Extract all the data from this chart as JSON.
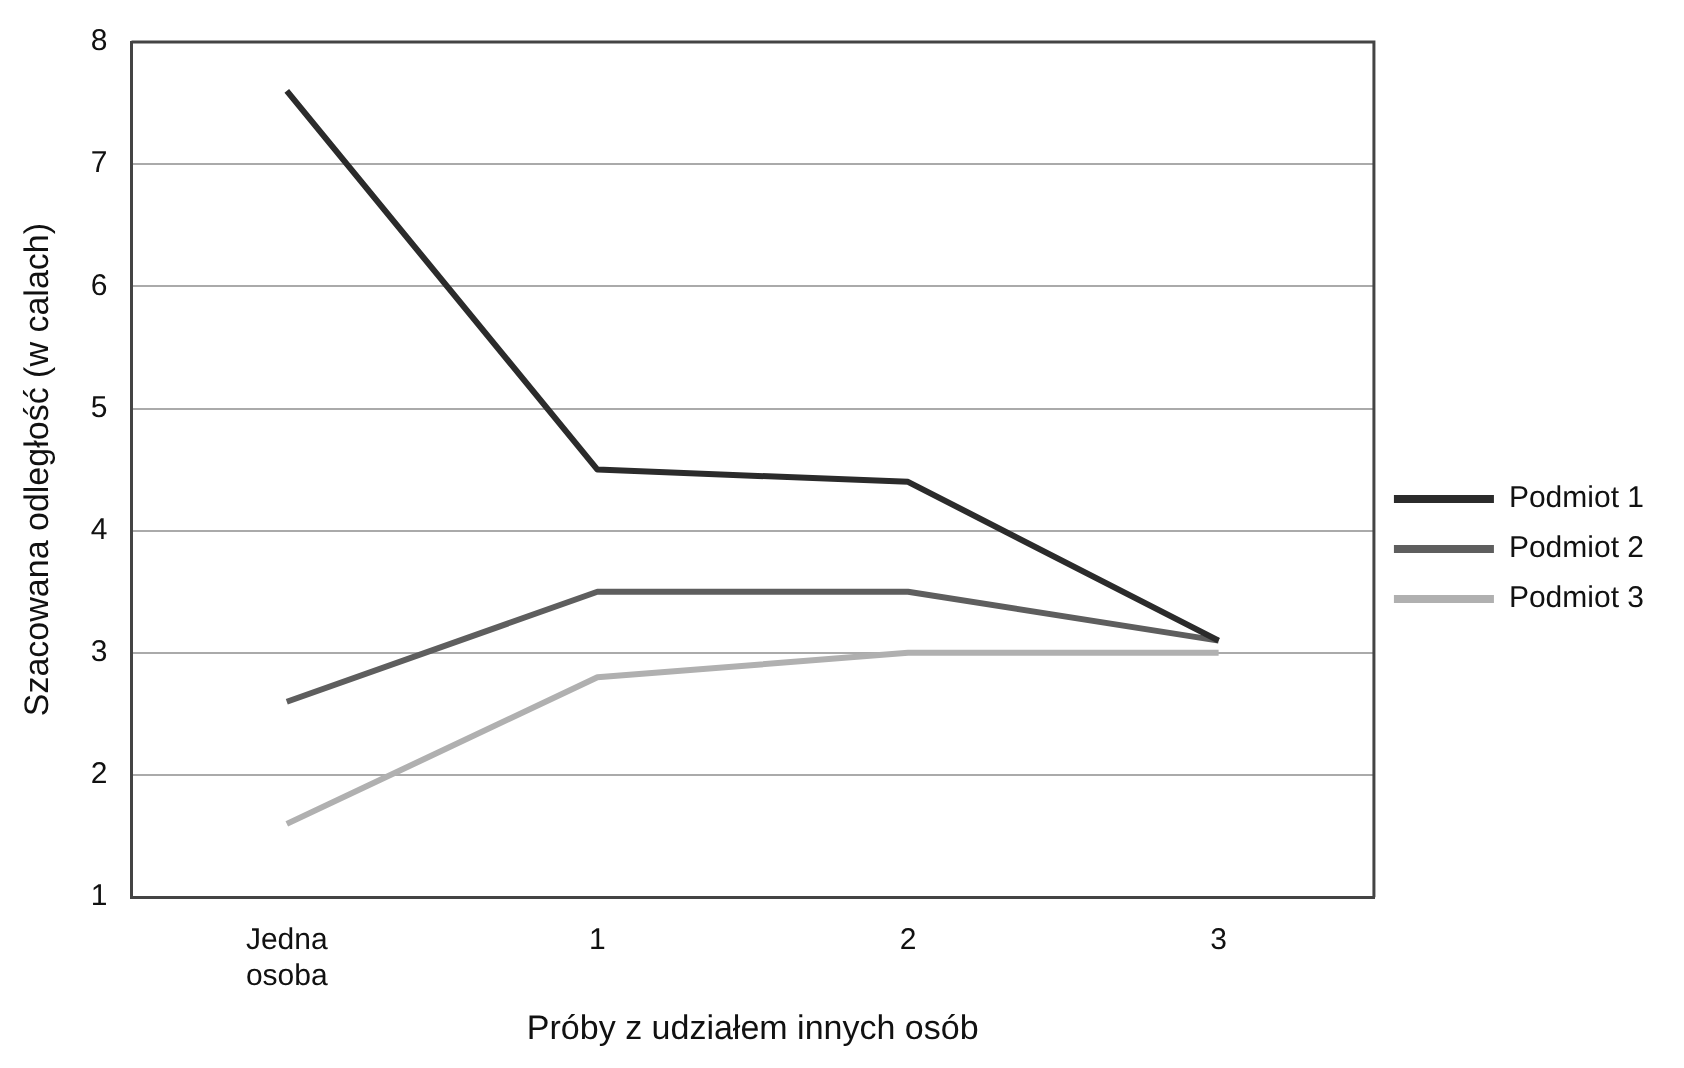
{
  "chart_data": {
    "type": "line",
    "xlabel": "Próby z udziałem innych osób",
    "ylabel": "Szacowana odległość (w calach)",
    "categories": [
      "Jedna osoba",
      "1",
      "2",
      "3"
    ],
    "series": [
      {
        "name": "Podmiot 1",
        "color": "#2b2b2b",
        "values": [
          7.6,
          4.5,
          4.4,
          3.1
        ]
      },
      {
        "name": "Podmiot 2",
        "color": "#5e5e5e",
        "values": [
          2.6,
          3.5,
          3.5,
          3.1
        ]
      },
      {
        "name": "Podmiot 3",
        "color": "#b0b0b0",
        "values": [
          1.6,
          2.8,
          3.0,
          3.0
        ]
      }
    ],
    "ylim": [
      1,
      8
    ],
    "yticks": [
      1,
      2,
      3,
      4,
      5,
      6,
      7,
      8
    ],
    "grid": "y",
    "legend": "right",
    "marker": "none",
    "line_style": "solid"
  }
}
